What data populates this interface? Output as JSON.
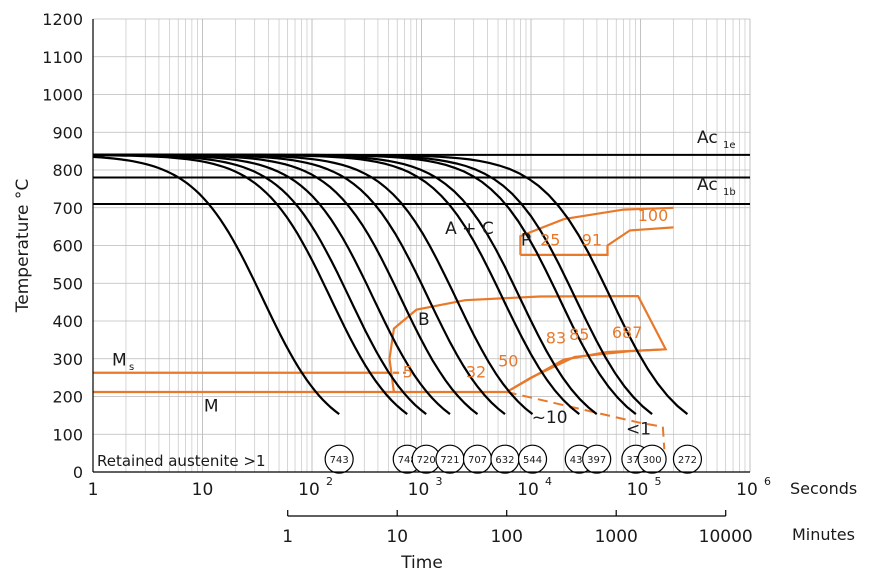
{
  "chart_data": {
    "type": "line",
    "xscale": "log",
    "xlim": [
      1,
      1000000
    ],
    "ylim": [
      0,
      1200
    ],
    "ylabel": "Temperature °C",
    "xlabel": "Time",
    "x_ticks": [
      {
        "v": 1,
        "base": "1",
        "exp": ""
      },
      {
        "v": 10,
        "base": "10",
        "exp": ""
      },
      {
        "v": 100,
        "base": "10",
        "exp": "2"
      },
      {
        "v": 1000,
        "base": "10",
        "exp": "3"
      },
      {
        "v": 10000,
        "base": "10",
        "exp": "4"
      },
      {
        "v": 100000,
        "base": "10",
        "exp": "5"
      },
      {
        "v": 1000000,
        "base": "10",
        "exp": "6"
      }
    ],
    "x_unit_seconds": "Seconds",
    "minutes_axis": {
      "label": "Minutes",
      "ticks": [
        {
          "min": 1,
          "label": "1"
        },
        {
          "min": 10,
          "label": "10"
        },
        {
          "min": 100,
          "label": "100"
        },
        {
          "min": 1000,
          "label": "1000"
        },
        {
          "min": 10000,
          "label": "10000"
        }
      ]
    },
    "y_ticks": [
      0,
      100,
      200,
      300,
      400,
      500,
      600,
      700,
      800,
      900,
      1000,
      1100,
      1200
    ],
    "horizontal_lines": [
      {
        "y": 840,
        "label": "Ac",
        "sub": "1e"
      },
      {
        "y": 780,
        "label": "",
        "sub": ""
      },
      {
        "y": 710,
        "label": "Ac",
        "sub": "1b"
      }
    ],
    "cooling_curves": [
      {
        "hardness": "743",
        "end": 177
      },
      {
        "hardness": "748",
        "end": 741
      },
      {
        "hardness": "720",
        "end": 1104
      },
      {
        "hardness": "721",
        "end": 1819
      },
      {
        "hardness": "707",
        "end": 3247
      },
      {
        "hardness": "632",
        "end": 5785
      },
      {
        "hardness": "544",
        "end": 10328
      },
      {
        "hardness": "439",
        "end": 27606
      },
      {
        "hardness": "397",
        "end": 39810
      },
      {
        "hardness": "371",
        "end": 90750
      },
      {
        "hardness": "300",
        "end": 127610
      },
      {
        "hardness": "272",
        "end": 268350
      }
    ],
    "phase_labels": [
      {
        "text": "A + C",
        "x": 2740,
        "y": 630
      },
      {
        "text": "P",
        "x": 9000,
        "y": 600
      },
      {
        "text": "B",
        "x": 1050,
        "y": 390
      },
      {
        "text": "M",
        "x": 12,
        "y": 160
      },
      {
        "text": "~10",
        "x": 14800,
        "y": 130
      },
      {
        "text": "<1",
        "x": 96000,
        "y": 100
      }
    ],
    "ms_label": {
      "text": "M",
      "sub": "s"
    },
    "transformation_percentages": [
      {
        "text": "5",
        "x": 750,
        "y": 250
      },
      {
        "text": "32",
        "x": 3150,
        "y": 250
      },
      {
        "text": "50",
        "x": 6200,
        "y": 280
      },
      {
        "text": "83",
        "x": 16900,
        "y": 340
      },
      {
        "text": "85",
        "x": 27600,
        "y": 350
      },
      {
        "text": "687",
        "x": 75500,
        "y": 355
      },
      {
        "text": "25",
        "x": 15000,
        "y": 600
      },
      {
        "text": "91",
        "x": 36000,
        "y": 600
      },
      {
        "text": "100",
        "x": 130000,
        "y": 665
      }
    ],
    "retained_austenite_label": "Retained austenite >1",
    "colors": {
      "curves": "#000000",
      "phase_boundary": "#e8792b",
      "grid": "#bbbbbb"
    }
  }
}
